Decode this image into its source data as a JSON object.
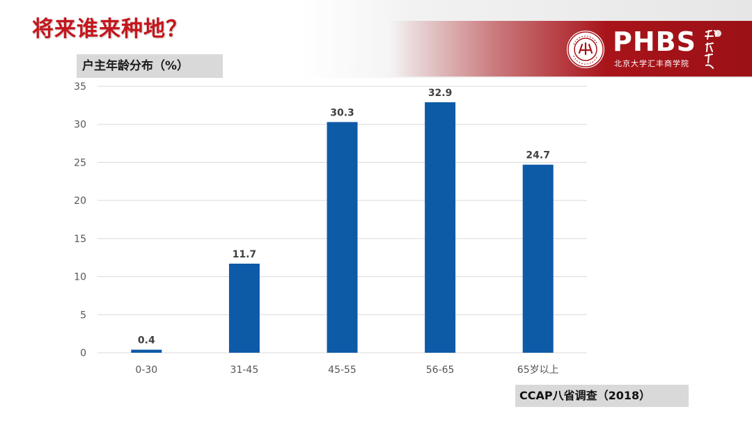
{
  "slide": {
    "title": "将来谁来种地？",
    "panel_label": "户主年龄分布（%）",
    "source": "CCAP八省调查（2018）"
  },
  "logo": {
    "name": "PHBS",
    "subtitle": "北京大学汇丰商学院",
    "seal_icon": "peking-university-seal-icon",
    "script_icon": "calligraphy-icon",
    "band_color": "#a8141a"
  },
  "colors": {
    "title": "#c4161c",
    "bar": "#0d5aa7",
    "grid": "#d9d9d9"
  },
  "chart_data": {
    "type": "bar",
    "categories": [
      "0-30",
      "31-45",
      "45-55",
      "56-65",
      "65岁以上"
    ],
    "values": [
      0.4,
      11.7,
      30.3,
      32.9,
      24.7
    ],
    "data_labels": [
      "0.4",
      "11.7",
      "30.3",
      "32.9",
      "24.7"
    ],
    "yticks": [
      0,
      5,
      10,
      15,
      20,
      25,
      30,
      35
    ],
    "ylim": [
      0,
      35
    ],
    "grid": true,
    "legend": "none"
  }
}
